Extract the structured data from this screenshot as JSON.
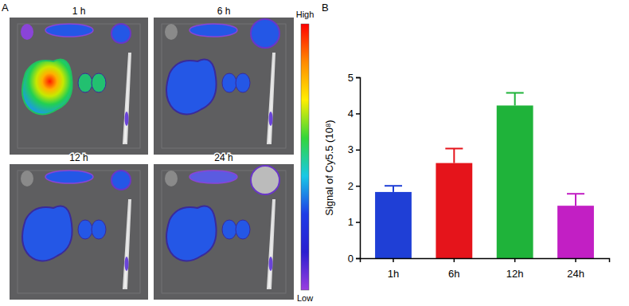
{
  "chart_data": {
    "type": "bar",
    "categories": [
      "1h",
      "6h",
      "12h",
      "24h"
    ],
    "values": [
      1.83,
      2.63,
      4.22,
      1.45
    ],
    "errors": [
      0.17,
      0.4,
      0.35,
      0.33
    ],
    "colors": [
      "#1f3fd6",
      "#e5141b",
      "#1fb33a",
      "#c21fc4"
    ],
    "ylabel": "Signal of Cy5.5 (10⁸)",
    "ylim": [
      0,
      5
    ],
    "yticks": [
      0,
      1,
      2,
      3,
      4,
      5
    ]
  },
  "panel_labels": [
    "A",
    "B"
  ],
  "images": {
    "titles": [
      "1 h",
      "6 h",
      "12 h",
      "24 h"
    ],
    "colorbar_labels": [
      "High",
      "Low"
    ]
  }
}
